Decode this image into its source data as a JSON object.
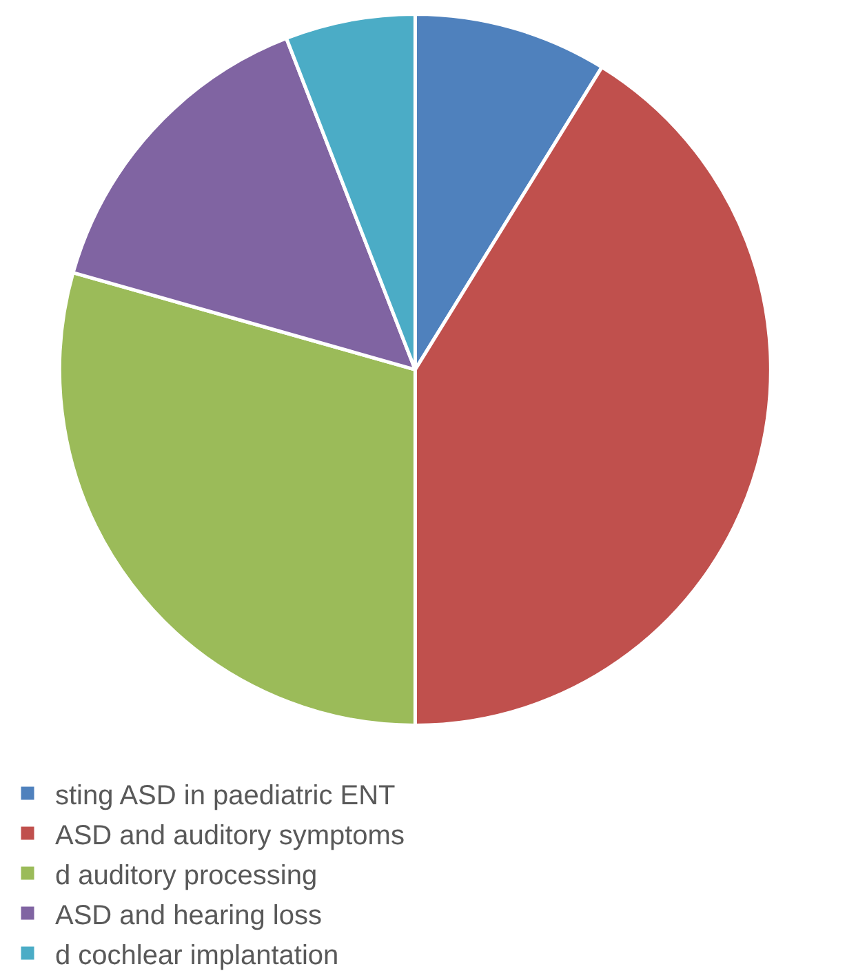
{
  "chart_data": {
    "type": "pie",
    "categories": [
      "sting ASD in paediatric ENT",
      "ASD and auditory symptoms",
      "d auditory processing",
      "ASD and hearing loss",
      "d cochlear implantation"
    ],
    "values": [
      8.8,
      41.2,
      29.4,
      14.7,
      5.9
    ],
    "colors": [
      "#4f81bd",
      "#c0504d",
      "#9bbb59",
      "#8064a2",
      "#4bacc6"
    ],
    "legend": "bottom"
  }
}
